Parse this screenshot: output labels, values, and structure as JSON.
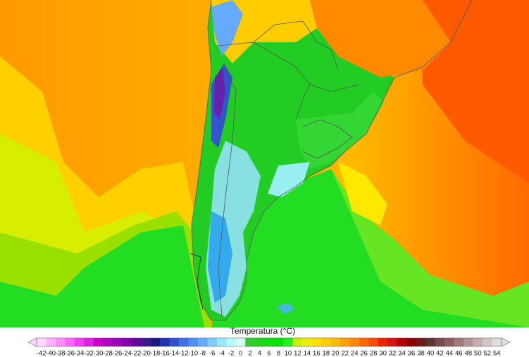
{
  "colorbar": {
    "title": "Temperatura (°C)",
    "ticks": [
      -42,
      -40,
      -38,
      -36,
      -34,
      -32,
      -30,
      -28,
      -26,
      -24,
      -22,
      -20,
      -18,
      -16,
      -14,
      -12,
      -10,
      -8,
      -6,
      -4,
      -2,
      0,
      2,
      4,
      6,
      8,
      10,
      12,
      14,
      16,
      18,
      20,
      22,
      24,
      26,
      28,
      30,
      32,
      34,
      36,
      38,
      40,
      42,
      44,
      46,
      48,
      50,
      52,
      54
    ],
    "colors": [
      "#ffd9ff",
      "#ffb3ff",
      "#ff8cff",
      "#ff66ff",
      "#f040f0",
      "#e020e0",
      "#cc00cc",
      "#b000c0",
      "#9900bb",
      "#8000aa",
      "#660099",
      "#3d1a8c",
      "#1a1a80",
      "#2233aa",
      "#2f4fcc",
      "#3f6fe0",
      "#4f8ff0",
      "#66aaff",
      "#80ccff",
      "#99e6ff",
      "#b3ffff",
      "#d9fff0",
      "#33cc33",
      "#22d422",
      "#11dd11",
      "#00e600",
      "#22ee22",
      "#ccee00",
      "#eeee00",
      "#ffe000",
      "#ffd000",
      "#ffbb00",
      "#ffa000",
      "#ff8800",
      "#ff6a00",
      "#ff4c00",
      "#ee2200",
      "#d41111",
      "#b30000",
      "#8c0000",
      "#6b1a1a",
      "#5c3333",
      "#7a4a4a",
      "#8c6060",
      "#9e7a7a",
      "#b39393",
      "#c4adad",
      "#d1c4c4",
      "#dcdcdc"
    ]
  }
}
